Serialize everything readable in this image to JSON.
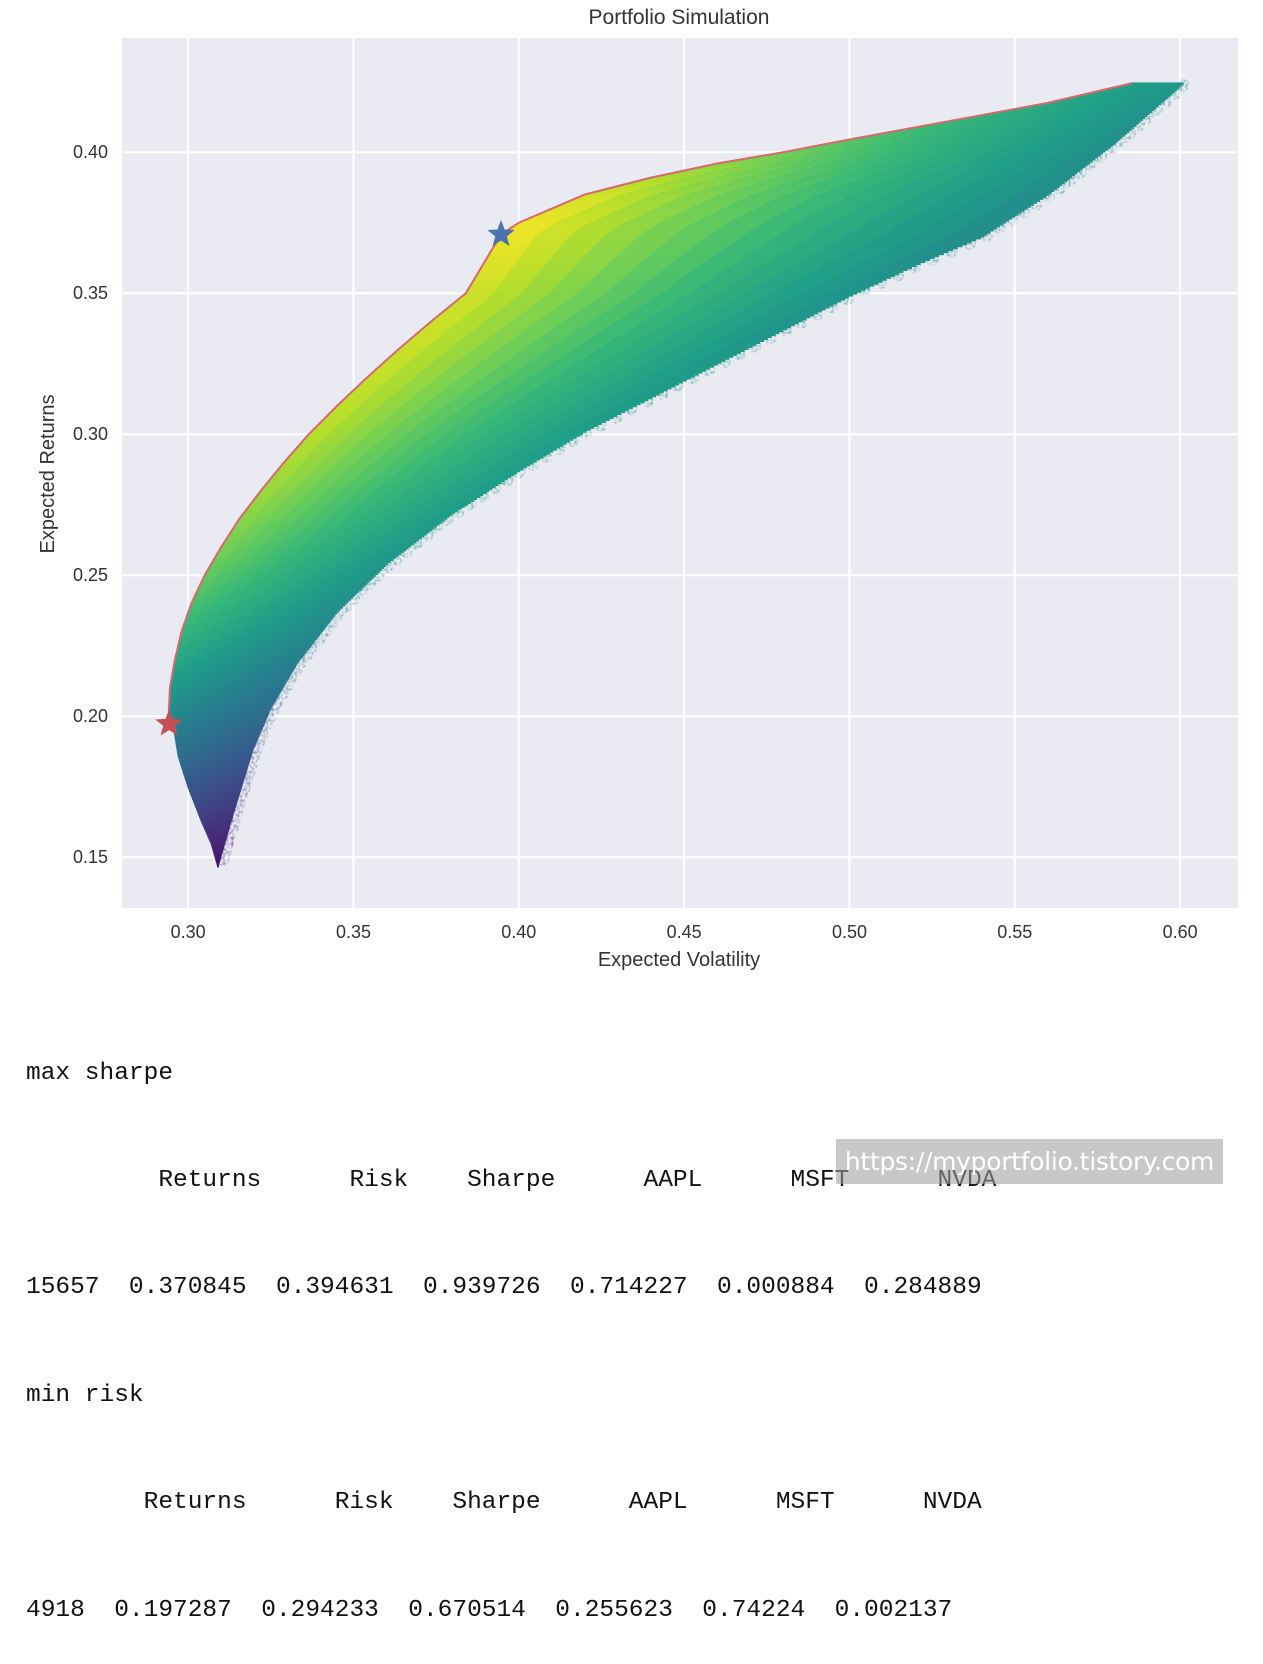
{
  "chart_data": {
    "type": "scatter",
    "title": "Portfolio Simulation",
    "xlabel": "Expected Volatility",
    "ylabel": "Expected Returns",
    "xlim": [
      0.28,
      0.6175
    ],
    "ylim": [
      0.132,
      0.4405
    ],
    "xticks": [
      "0.30",
      "0.35",
      "0.40",
      "0.45",
      "0.50",
      "0.55",
      "0.60"
    ],
    "yticks": [
      "0.15",
      "0.20",
      "0.25",
      "0.30",
      "0.35",
      "0.40"
    ],
    "grid": true,
    "colormap": "viridis",
    "color_by": "sharpe",
    "background_color": "#eaeaf2",
    "point_cloud": {
      "efficient_frontier": [
        [
          0.294,
          0.1973
        ],
        [
          0.2945,
          0.21
        ],
        [
          0.296,
          0.22
        ],
        [
          0.298,
          0.23
        ],
        [
          0.301,
          0.24
        ],
        [
          0.305,
          0.25
        ],
        [
          0.31,
          0.26
        ],
        [
          0.3155,
          0.27
        ],
        [
          0.322,
          0.28
        ],
        [
          0.329,
          0.29
        ],
        [
          0.3365,
          0.3
        ],
        [
          0.345,
          0.31
        ],
        [
          0.354,
          0.32
        ],
        [
          0.3635,
          0.33
        ],
        [
          0.3735,
          0.34
        ],
        [
          0.384,
          0.35
        ],
        [
          0.3946,
          0.3708
        ],
        [
          0.4,
          0.375
        ],
        [
          0.42,
          0.385
        ],
        [
          0.44,
          0.391
        ],
        [
          0.46,
          0.396
        ],
        [
          0.48,
          0.4
        ],
        [
          0.5,
          0.4045
        ],
        [
          0.53,
          0.411
        ],
        [
          0.56,
          0.4175
        ],
        [
          0.5855,
          0.4245
        ]
      ],
      "lower_boundary": [
        [
          0.2954,
          0.1973
        ],
        [
          0.297,
          0.186
        ],
        [
          0.3,
          0.175
        ],
        [
          0.304,
          0.163
        ],
        [
          0.307,
          0.155
        ],
        [
          0.309,
          0.1468
        ],
        [
          0.3135,
          0.165
        ],
        [
          0.3195,
          0.188
        ],
        [
          0.325,
          0.203
        ],
        [
          0.333,
          0.219
        ],
        [
          0.345,
          0.237
        ],
        [
          0.36,
          0.254
        ],
        [
          0.38,
          0.272
        ],
        [
          0.4,
          0.287
        ],
        [
          0.42,
          0.301
        ],
        [
          0.44,
          0.313
        ],
        [
          0.46,
          0.325
        ],
        [
          0.48,
          0.337
        ],
        [
          0.5,
          0.349
        ],
        [
          0.52,
          0.36
        ],
        [
          0.54,
          0.37
        ],
        [
          0.56,
          0.385
        ],
        [
          0.58,
          0.403
        ],
        [
          0.6015,
          0.425
        ]
      ]
    },
    "markers": [
      {
        "name": "max sharpe",
        "x": 0.394631,
        "y": 0.370845,
        "symbol": "star",
        "color": "#4c72b0"
      },
      {
        "name": "min risk",
        "x": 0.294233,
        "y": 0.197287,
        "symbol": "star",
        "color": "#c44e52"
      }
    ],
    "frontier_line_color": "#d6696b"
  },
  "output": {
    "lines": [
      "max sharpe",
      "         Returns      Risk    Sharpe      AAPL      MSFT      NVDA",
      "15657  0.370845  0.394631  0.939726  0.714227  0.000884  0.284889",
      "min risk",
      "        Returns      Risk    Sharpe      AAPL      MSFT      NVDA",
      "4918  0.197287  0.294233  0.670514  0.255623  0.74224  0.002137"
    ]
  },
  "watermark": {
    "text": "https://myportfolio.tistory.com"
  }
}
